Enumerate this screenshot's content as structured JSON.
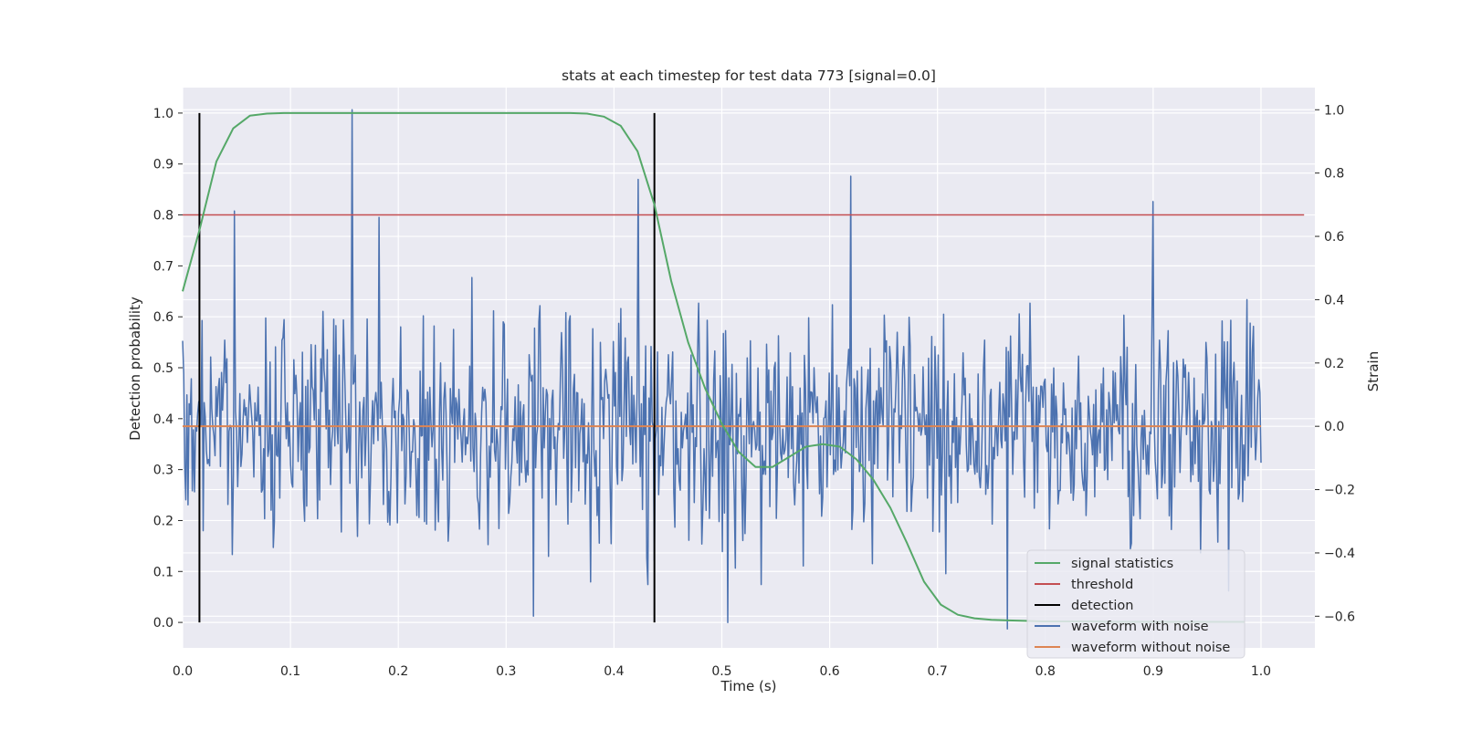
{
  "chart_data": {
    "type": "line",
    "title": "stats at each timestep for test data 773 [signal=0.0]",
    "xlabel": "Time (s)",
    "ylabel": "Detection probability",
    "y2label": "Strain",
    "xlim": [
      0.0,
      1.05
    ],
    "ylim": [
      -0.05,
      1.05
    ],
    "y2lim": [
      -0.7,
      1.07
    ],
    "grid": true,
    "legend_position": "lower-right",
    "x_ticks": [
      "0.0",
      "0.1",
      "0.2",
      "0.3",
      "0.4",
      "0.5",
      "0.6",
      "0.7",
      "0.8",
      "0.9",
      "1.0"
    ],
    "y_ticks": [
      "0.0",
      "0.1",
      "0.2",
      "0.3",
      "0.4",
      "0.5",
      "0.6",
      "0.7",
      "0.8",
      "0.9",
      "1.0"
    ],
    "y2_ticks": [
      "−0.6",
      "−0.4",
      "−0.2",
      "0.0",
      "0.2",
      "0.4",
      "0.6",
      "0.8",
      "1.0"
    ],
    "series": [
      {
        "name": "signal statistics",
        "axis": "left",
        "color": "#55a868",
        "x": [
          0.0,
          0.0156,
          0.0313,
          0.0469,
          0.0625,
          0.0781,
          0.0938,
          0.1094,
          0.125,
          0.1406,
          0.1563,
          0.1719,
          0.1875,
          0.2031,
          0.2188,
          0.2344,
          0.25,
          0.2656,
          0.2813,
          0.2969,
          0.3125,
          0.3281,
          0.3438,
          0.3594,
          0.375,
          0.3906,
          0.4063,
          0.4219,
          0.4375,
          0.4531,
          0.4688,
          0.4844,
          0.5,
          0.5156,
          0.5313,
          0.5469,
          0.5625,
          0.5781,
          0.5938,
          0.6094,
          0.625,
          0.6406,
          0.6563,
          0.6719,
          0.6875,
          0.7031,
          0.7188,
          0.7344,
          0.75,
          0.7656,
          0.7813,
          0.7969,
          0.8125,
          0.8281,
          0.8438,
          0.8594,
          0.875,
          0.8906,
          0.9063,
          0.9219,
          0.9375,
          0.9531,
          0.9688,
          0.9844
        ],
        "values": [
          0.65,
          0.77,
          0.905,
          0.97,
          0.995,
          0.999,
          1.0,
          1.0,
          1.0,
          1.0,
          1.0,
          1.0,
          1.0,
          1.0,
          1.0,
          1.0,
          1.0,
          1.0,
          1.0,
          1.0,
          1.0,
          1.0,
          1.0,
          1.0,
          0.999,
          0.993,
          0.975,
          0.925,
          0.82,
          0.67,
          0.55,
          0.46,
          0.39,
          0.335,
          0.305,
          0.305,
          0.325,
          0.345,
          0.35,
          0.345,
          0.32,
          0.28,
          0.225,
          0.155,
          0.08,
          0.035,
          0.015,
          0.008,
          0.005,
          0.004,
          0.003,
          0.002,
          0.002,
          0.002,
          0.002,
          0.001,
          0.001,
          0.001,
          0.001,
          0.001,
          0.001,
          0.001,
          0.001,
          0.001
        ]
      },
      {
        "name": "threshold",
        "axis": "left",
        "color": "#c44e52",
        "x": [
          0.0,
          1.04
        ],
        "values": [
          0.8,
          0.8
        ]
      },
      {
        "name": "detection",
        "axis": "left",
        "color": "#000000",
        "x": [
          0.0156,
          0.4375
        ],
        "segments": [
          [
            0.0156,
            0.0,
            1.0
          ],
          [
            0.4375,
            0.0,
            1.0
          ]
        ]
      },
      {
        "name": "waveform with noise",
        "axis": "right",
        "color": "#4c72b0",
        "x_range": [
          0.0,
          1.0
        ],
        "samples": 1000,
        "peaks": [
          [
            0.157,
            1.0
          ],
          [
            0.62,
            0.79
          ],
          [
            0.9,
            0.71
          ],
          [
            0.422,
            0.78
          ],
          [
            0.048,
            0.68
          ],
          [
            0.182,
            0.66
          ],
          [
            0.506,
            -0.62
          ],
          [
            0.765,
            -0.64
          ],
          [
            0.325,
            -0.6
          ],
          [
            0.97,
            -0.52
          ]
        ],
        "values": []
      },
      {
        "name": "waveform without noise",
        "axis": "right",
        "color": "#dd8452",
        "x": [
          0.0,
          1.0
        ],
        "values": [
          0.0,
          0.0
        ]
      }
    ]
  }
}
